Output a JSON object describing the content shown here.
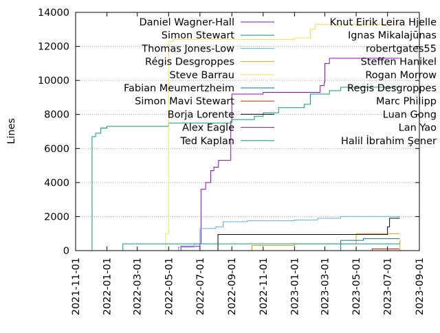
{
  "chart_data": {
    "type": "line",
    "xlabel": "",
    "ylabel": "Lines",
    "x_axis_kind": "date",
    "xlim": [
      "2021-11-01",
      "2023-09-01"
    ],
    "ylim": [
      0,
      14000
    ],
    "grid": true,
    "legend_position": "top, two columns",
    "x_ticks": [
      "2021-11-01",
      "2022-01-01",
      "2022-03-01",
      "2022-05-01",
      "2022-07-01",
      "2022-09-01",
      "2022-11-01",
      "2023-01-01",
      "2023-03-01",
      "2023-05-01",
      "2023-07-01",
      "2023-09-01"
    ],
    "y_ticks": [
      0,
      2000,
      4000,
      6000,
      8000,
      10000,
      12000,
      14000
    ],
    "series": [
      {
        "name": "Daniel Wagner-Hall",
        "color": "#9400d3",
        "points": [
          [
            "2022-05-20",
            0
          ],
          [
            "2022-05-25",
            250
          ],
          [
            "2022-07-01",
            400
          ],
          [
            "2022-07-03",
            3600
          ],
          [
            "2022-07-12",
            4000
          ],
          [
            "2022-07-22",
            4700
          ],
          [
            "2022-07-28",
            4900
          ],
          [
            "2022-08-06",
            5300
          ],
          [
            "2022-08-28",
            5300
          ],
          [
            "2022-08-30",
            7600
          ],
          [
            "2022-09-01",
            9200
          ],
          [
            "2022-11-01",
            9300
          ],
          [
            "2023-01-20",
            9300
          ],
          [
            "2023-02-20",
            9700
          ],
          [
            "2023-02-28",
            9900
          ],
          [
            "2023-03-01",
            11000
          ],
          [
            "2023-03-10",
            11300
          ],
          [
            "2023-07-25",
            11300
          ]
        ]
      },
      {
        "name": "Simon Stewart",
        "color": "#009e73",
        "points": [
          [
            "2021-12-01",
            0
          ],
          [
            "2021-12-03",
            6700
          ],
          [
            "2021-12-10",
            6900
          ],
          [
            "2021-12-20",
            7200
          ],
          [
            "2022-01-01",
            7300
          ],
          [
            "2022-04-15",
            7300
          ],
          [
            "2022-05-01",
            7500
          ],
          [
            "2022-09-01",
            7700
          ],
          [
            "2022-10-15",
            7900
          ],
          [
            "2022-11-01",
            8100
          ],
          [
            "2022-12-01",
            8400
          ],
          [
            "2023-01-20",
            8600
          ],
          [
            "2023-02-01",
            9200
          ],
          [
            "2023-03-10",
            9400
          ],
          [
            "2023-04-01",
            9600
          ],
          [
            "2023-07-25",
            9600
          ]
        ]
      },
      {
        "name": "Thomas Jones-Low",
        "color": "#56b4e9",
        "points": [
          [
            "2022-05-01",
            0
          ],
          [
            "2022-05-20",
            200
          ],
          [
            "2022-06-20",
            400
          ],
          [
            "2022-07-01",
            1300
          ],
          [
            "2022-08-01",
            1400
          ],
          [
            "2022-08-15",
            1700
          ],
          [
            "2022-10-01",
            1750
          ],
          [
            "2023-01-01",
            1800
          ],
          [
            "2023-02-15",
            1900
          ],
          [
            "2023-04-01",
            2000
          ],
          [
            "2023-07-25",
            2000
          ]
        ]
      },
      {
        "name": "Régis Desgroppes",
        "color": "#e69f00",
        "points": [
          [
            "2022-08-01",
            0
          ],
          [
            "2022-10-10",
            300
          ],
          [
            "2023-01-01",
            400
          ],
          [
            "2023-05-01",
            1000
          ],
          [
            "2023-07-25",
            1000
          ]
        ]
      },
      {
        "name": "Steve Barrau",
        "color": "#f0e442",
        "points": [
          [
            "2022-04-20",
            0
          ],
          [
            "2022-04-25",
            1000
          ],
          [
            "2022-05-01",
            12300
          ],
          [
            "2022-05-10",
            12400
          ],
          [
            "2023-01-01",
            12500
          ],
          [
            "2023-02-01",
            13000
          ],
          [
            "2023-02-10",
            13300
          ],
          [
            "2023-07-25",
            13300
          ]
        ]
      },
      {
        "name": "Fabian Meumertzheim",
        "color": "#0072b2",
        "points": [
          [
            "2023-03-15",
            0
          ],
          [
            "2023-04-01",
            600
          ],
          [
            "2023-05-15",
            700
          ],
          [
            "2023-07-25",
            700
          ]
        ]
      },
      {
        "name": "Simon Mavi Stewart",
        "color": "#e51e10",
        "points": [
          [
            "2023-05-01",
            0
          ],
          [
            "2023-06-01",
            100
          ],
          [
            "2023-07-25",
            150
          ]
        ]
      },
      {
        "name": "Borja Lorente",
        "color": "#000000",
        "points": [
          [
            "2022-08-01",
            0
          ],
          [
            "2022-08-05",
            950
          ],
          [
            "2023-05-01",
            950
          ],
          [
            "2023-07-01",
            1400
          ],
          [
            "2023-07-05",
            1900
          ],
          [
            "2023-07-25",
            1900
          ]
        ]
      },
      {
        "name": "Alex Eagle",
        "color": "#9400d3",
        "points": [
          [
            "2023-07-01",
            0
          ],
          [
            "2023-07-25",
            30
          ]
        ]
      },
      {
        "name": "Ted Kaplan",
        "color": "#009e73",
        "points": [
          [
            "2022-01-20",
            0
          ],
          [
            "2022-02-01",
            400
          ],
          [
            "2023-07-25",
            400
          ]
        ]
      },
      {
        "name": "Knut Eirik Leira Hjelle",
        "color": "#56b4e9",
        "points": [
          [
            "2023-04-01",
            0
          ],
          [
            "2023-07-25",
            500
          ]
        ]
      },
      {
        "name": "Ignas Mikalajūnas",
        "color": "#e69f00",
        "points": [
          [
            "2023-05-01",
            0
          ],
          [
            "2023-07-25",
            600
          ]
        ]
      },
      {
        "name": "robertgates55",
        "color": "#f0e442",
        "points": [
          [
            "2023-06-01",
            0
          ],
          [
            "2023-07-25",
            300
          ]
        ]
      },
      {
        "name": "Steffen Hanikel",
        "color": "#0072b2",
        "points": [
          [
            "2023-06-15",
            0
          ],
          [
            "2023-07-25",
            50
          ]
        ]
      },
      {
        "name": "Rogan Morrow",
        "color": "#e51e10",
        "points": [
          [
            "2023-07-01",
            0
          ],
          [
            "2023-07-25",
            20
          ]
        ]
      },
      {
        "name": "Regis Desgroppes",
        "color": "#000000",
        "points": [
          [
            "2023-07-10",
            0
          ],
          [
            "2023-07-25",
            10
          ]
        ]
      },
      {
        "name": "Marc Philipp",
        "color": "#9400d3",
        "points": [
          [
            "2023-07-15",
            0
          ],
          [
            "2023-07-25",
            5
          ]
        ]
      },
      {
        "name": "Luan Gong",
        "color": "#009e73",
        "points": [
          [
            "2023-07-18",
            0
          ],
          [
            "2023-07-25",
            5
          ]
        ]
      },
      {
        "name": "Lan Yao",
        "color": "#56b4e9",
        "points": [
          [
            "2023-07-20",
            0
          ],
          [
            "2023-07-25",
            5
          ]
        ]
      },
      {
        "name": "Halil İbrahim Şener",
        "color": "#e69f00",
        "points": [
          [
            "2023-07-22",
            0
          ],
          [
            "2023-07-25",
            5
          ]
        ]
      }
    ]
  }
}
